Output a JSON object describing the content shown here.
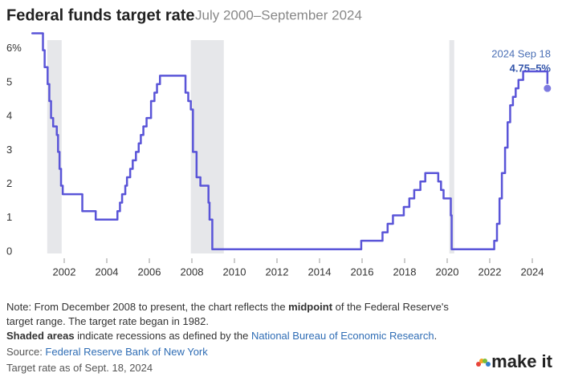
{
  "chart_data": {
    "type": "step",
    "title": "Federal funds target rate",
    "subtitle": "July 2000–September 2024",
    "annotation": {
      "date": "2024 Sep 18",
      "range": "4.75–5%"
    },
    "color": "#5a55d8",
    "recession_color": "#e6e7ea",
    "recessions": [
      [
        2001.2,
        2001.88
      ],
      [
        2007.95,
        2009.5
      ],
      [
        2020.1,
        2020.33
      ]
    ],
    "x": [
      2000.5,
      2001.0,
      2001.08,
      2001.22,
      2001.3,
      2001.38,
      2001.48,
      2001.65,
      2001.71,
      2001.78,
      2001.85,
      2001.93,
      2002.85,
      2003.48,
      2004.5,
      2004.62,
      2004.72,
      2004.87,
      2004.95,
      2005.1,
      2005.22,
      2005.37,
      2005.5,
      2005.6,
      2005.72,
      2005.87,
      2006.08,
      2006.24,
      2006.36,
      2006.5,
      2007.7,
      2007.83,
      2007.95,
      2008.05,
      2008.22,
      2008.4,
      2008.78,
      2008.83,
      2008.96,
      2015.96,
      2016.96,
      2017.2,
      2017.45,
      2017.96,
      2018.22,
      2018.45,
      2018.74,
      2018.97,
      2019.58,
      2019.71,
      2019.83,
      2020.17,
      2020.21,
      2022.21,
      2022.34,
      2022.46,
      2022.57,
      2022.72,
      2022.84,
      2022.96,
      2023.09,
      2023.22,
      2023.35,
      2023.57,
      2024.71
    ],
    "values": [
      6.5,
      6.0,
      5.5,
      5.0,
      4.5,
      4.0,
      3.75,
      3.5,
      3.0,
      2.5,
      2.0,
      1.75,
      1.25,
      1.0,
      1.25,
      1.5,
      1.75,
      2.0,
      2.25,
      2.5,
      2.75,
      3.0,
      3.25,
      3.5,
      3.75,
      4.0,
      4.5,
      4.75,
      5.0,
      5.25,
      4.75,
      4.5,
      4.25,
      3.0,
      2.25,
      2.0,
      1.5,
      1.0,
      0.125,
      0.375,
      0.625,
      0.875,
      1.125,
      1.375,
      1.625,
      1.875,
      2.125,
      2.375,
      2.125,
      1.875,
      1.625,
      1.125,
      0.125,
      0.375,
      0.875,
      1.625,
      2.375,
      3.125,
      3.875,
      4.375,
      4.625,
      4.875,
      5.125,
      5.375,
      4.875
    ],
    "xlim": [
      2000,
      2025
    ],
    "xticks": [
      2002,
      2004,
      2006,
      2008,
      2010,
      2012,
      2014,
      2016,
      2018,
      2020,
      2022,
      2024
    ],
    "ylim": [
      0,
      6.3
    ],
    "yticks": [
      0,
      1,
      2,
      3,
      4,
      5,
      {
        "value": 6,
        "label": "6%"
      }
    ],
    "grid": false
  },
  "notes": {
    "note": [
      "Note: From December 2008 to present, the chart reflects the ",
      "midpoint",
      " of the Federal Reserve's target range. The target rate began in 1982."
    ],
    "shaded": [
      "Shaded areas",
      " indicate recessions as defined by the ",
      "National Bureau of Economic Research",
      "."
    ],
    "source": [
      "Source: ",
      "Federal Reserve Bank of New York"
    ],
    "asof": "Target rate as of Sept. 18, 2024",
    "logo": "make it"
  }
}
